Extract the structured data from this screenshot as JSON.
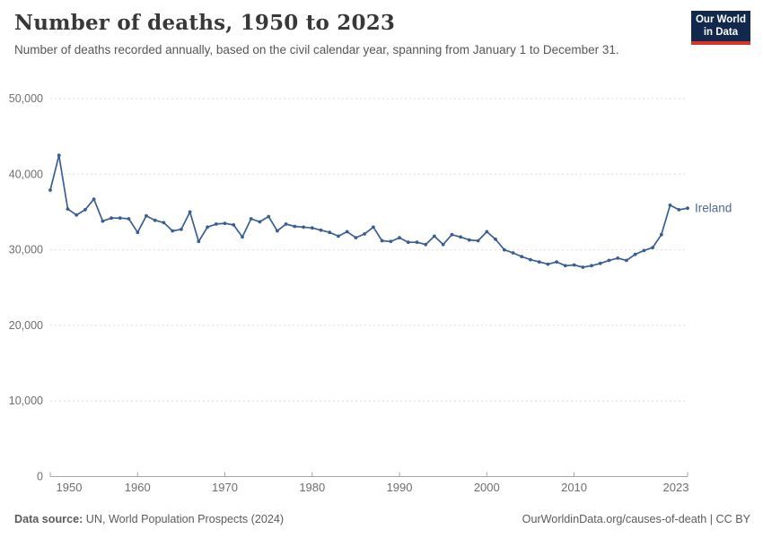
{
  "header": {
    "title": "Number of deaths, 1950 to 2023",
    "subtitle": "Number of deaths recorded annually, based on the civil calendar year, spanning from January 1 to December 31.",
    "logo": {
      "line1": "Our World",
      "line2": "in Data"
    }
  },
  "footer": {
    "source_label": "Data source:",
    "source_text": " UN, World Population Prospects (2024)",
    "link_text": "OurWorldinData.org/causes-of-death",
    "license_text": " | CC BY"
  },
  "colors": {
    "line": "#3a5e94",
    "entity_label": "#4c6a9c",
    "grid": "#dcdcdc",
    "axis": "#a5a5a5",
    "tick_label": "#6e6e6e",
    "logo_bg": "#12294d",
    "logo_red": "#d8352a"
  },
  "chart_data": {
    "type": "line",
    "title": "Number of deaths, 1950 to 2023",
    "xlabel": "",
    "ylabel": "",
    "xlim": [
      1950,
      2023
    ],
    "ylim": [
      0,
      50000
    ],
    "x_ticks": [
      1950,
      1960,
      1970,
      1980,
      1990,
      2000,
      2010,
      2023
    ],
    "y_ticks": [
      0,
      10000,
      20000,
      30000,
      40000,
      50000
    ],
    "grid": "horizontal-dashed",
    "legend_position": "end-of-line-label",
    "series": [
      {
        "name": "Ireland",
        "x": [
          1950,
          1951,
          1952,
          1953,
          1954,
          1955,
          1956,
          1957,
          1958,
          1959,
          1960,
          1961,
          1962,
          1963,
          1964,
          1965,
          1966,
          1967,
          1968,
          1969,
          1970,
          1971,
          1972,
          1973,
          1974,
          1975,
          1976,
          1977,
          1978,
          1979,
          1980,
          1981,
          1982,
          1983,
          1984,
          1985,
          1986,
          1987,
          1988,
          1989,
          1990,
          1991,
          1992,
          1993,
          1994,
          1995,
          1996,
          1997,
          1998,
          1999,
          2000,
          2001,
          2002,
          2003,
          2004,
          2005,
          2006,
          2007,
          2008,
          2009,
          2010,
          2011,
          2012,
          2013,
          2014,
          2015,
          2016,
          2017,
          2018,
          2019,
          2020,
          2021,
          2022,
          2023
        ],
        "values": [
          37900,
          42500,
          35400,
          34600,
          35300,
          36700,
          33800,
          34200,
          34200,
          34100,
          32300,
          34500,
          33900,
          33600,
          32500,
          32700,
          35000,
          31100,
          33000,
          33400,
          33500,
          33300,
          31700,
          34100,
          33700,
          34400,
          32500,
          33400,
          33100,
          33000,
          32900,
          32600,
          32300,
          31800,
          32400,
          31600,
          32100,
          33000,
          31200,
          31100,
          31600,
          31000,
          31000,
          30700,
          31800,
          30700,
          32000,
          31700,
          31300,
          31200,
          32400,
          31400,
          30000,
          29600,
          29100,
          28700,
          28400,
          28100,
          28400,
          27900,
          28000,
          27700,
          27900,
          28200,
          28600,
          28900,
          28600,
          29400,
          29900,
          30300,
          32000,
          35900,
          35300,
          35500
        ]
      }
    ]
  }
}
